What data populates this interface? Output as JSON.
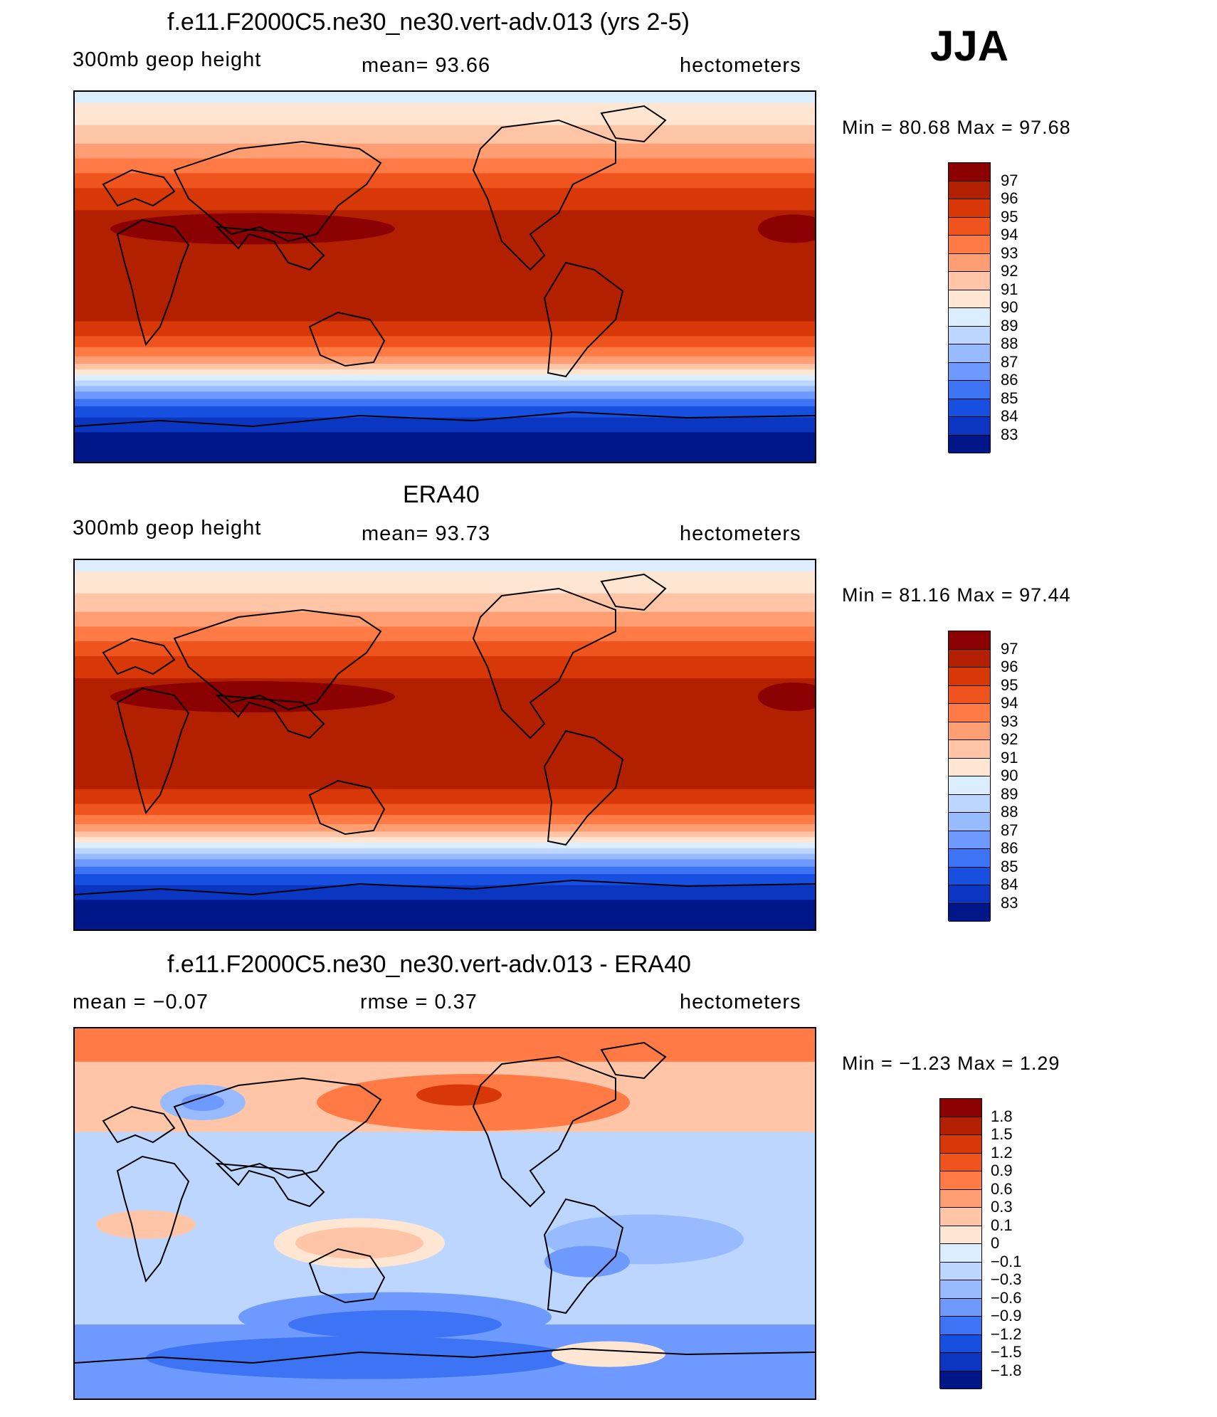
{
  "season": "JJA",
  "panels": [
    {
      "id": "model",
      "title": "f.e11.F2000C5.ne30_ne30.vert-adv.013 (yrs 2-5)",
      "left_text": "300mb  geop  height",
      "center_text": "mean=   93.66",
      "right_text": "hectometers",
      "min_max": "Min  =    80.68  Max  =    97.68",
      "colorbar": {
        "labels": [
          "97",
          "96",
          "95",
          "94",
          "93",
          "92",
          "91",
          "90",
          "89",
          "88",
          "87",
          "86",
          "85",
          "84",
          "83"
        ],
        "colors": [
          "#8b0000",
          "#b22000",
          "#d83808",
          "#f0541e",
          "#ff7a45",
          "#ff9e72",
          "#ffc5a6",
          "#ffe6d2",
          "#dbeeff",
          "#bcd6ff",
          "#98bbff",
          "#6e99ff",
          "#3c74f5",
          "#1750e0",
          "#0a36c2",
          "#00178a"
        ]
      },
      "field": "geopotential-height"
    },
    {
      "id": "obs",
      "title": "ERA40",
      "left_text": "300mb  geop  height",
      "center_text": "mean=   93.73",
      "right_text": "hectometers",
      "min_max": "Min  =    81.16  Max  =    97.44",
      "colorbar": {
        "labels": [
          "97",
          "96",
          "95",
          "94",
          "93",
          "92",
          "91",
          "90",
          "89",
          "88",
          "87",
          "86",
          "85",
          "84",
          "83"
        ],
        "colors": [
          "#8b0000",
          "#b22000",
          "#d83808",
          "#f0541e",
          "#ff7a45",
          "#ff9e72",
          "#ffc5a6",
          "#ffe6d2",
          "#dbeeff",
          "#bcd6ff",
          "#98bbff",
          "#6e99ff",
          "#3c74f5",
          "#1750e0",
          "#0a36c2",
          "#00178a"
        ]
      },
      "field": "geopotential-height"
    },
    {
      "id": "diff",
      "title": "f.e11.F2000C5.ne30_ne30.vert-adv.013 - ERA40",
      "left_text": "mean  =    −0.07",
      "center_text": "rmse  =     0.37",
      "right_text": "hectometers",
      "min_max": "Min  =    −1.23  Max  =      1.29",
      "colorbar": {
        "labels": [
          "1.8",
          "1.5",
          "1.2",
          "0.9",
          "0.6",
          "0.3",
          "0.1",
          "0",
          "−0.1",
          "−0.3",
          "−0.6",
          "−0.9",
          "−1.2",
          "−1.5",
          "−1.8"
        ],
        "colors": [
          "#8b0000",
          "#b22000",
          "#d83808",
          "#f0541e",
          "#ff7a45",
          "#ff9e72",
          "#ffc5a6",
          "#ffe6d2",
          "#dbeeff",
          "#bcd6ff",
          "#98bbff",
          "#6e99ff",
          "#3c74f5",
          "#1750e0",
          "#0a36c2",
          "#00178a"
        ]
      },
      "field": "difference"
    }
  ]
}
